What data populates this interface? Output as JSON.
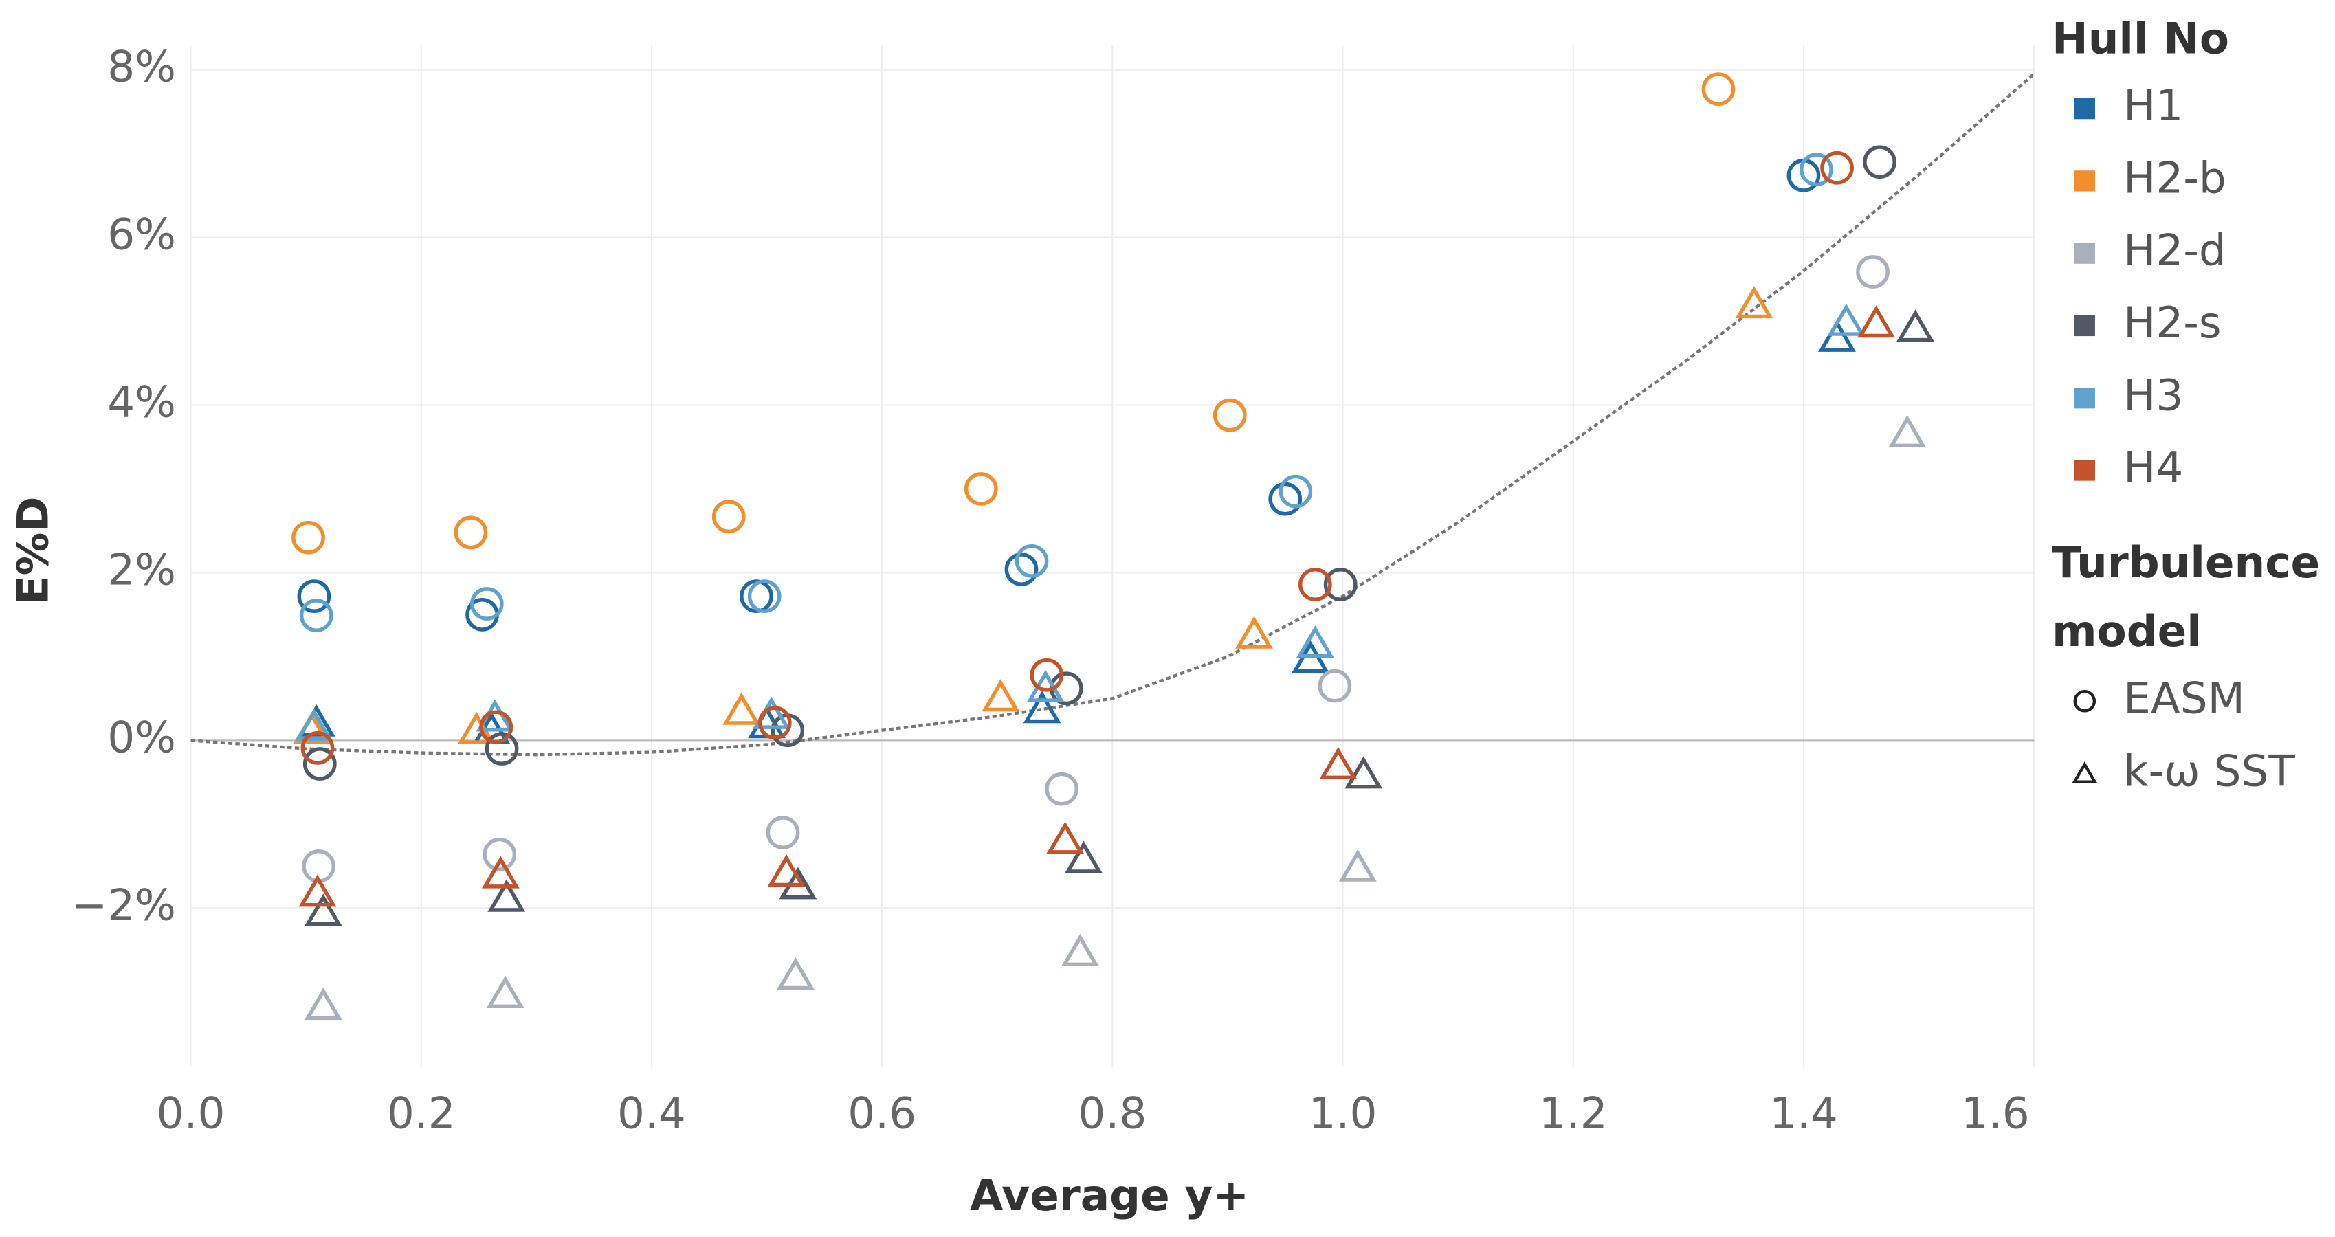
{
  "chart_data": {
    "type": "scatter",
    "x_label": "Average y+",
    "y_label": "E%D",
    "xlim": [
      0,
      1.6
    ],
    "ylim": [
      -3.9,
      8.3
    ],
    "xticks": [
      {
        "value": 0,
        "label": "0.0"
      },
      0.2,
      0.4,
      0.6,
      0.8,
      {
        "value": 1,
        "label": "1.0"
      },
      1.2,
      1.4,
      1.6
    ],
    "yticks": [
      {
        "value": -2,
        "label": "−2%"
      },
      {
        "value": 0,
        "label": "0%"
      },
      {
        "value": 2,
        "label": "2%"
      },
      {
        "value": 4,
        "label": "4%"
      },
      {
        "value": 6,
        "label": "6%"
      },
      {
        "value": 8,
        "label": "8%"
      }
    ],
    "grid": true,
    "legend_title": "Hull No",
    "shape_legend_title": [
      "Turbulence",
      "model"
    ],
    "shapes": [
      {
        "name": "EASM",
        "marker": "circle"
      },
      {
        "name": "k-ω SST",
        "marker": "triangle"
      }
    ],
    "series": [
      {
        "name": "H1",
        "color": "#1f6aa5",
        "by_shape": [
          {
            "x": [
              0.107,
              0.253,
              0.491,
              0.721,
              0.95,
              1.4
            ],
            "values": [
              1.72,
              1.5,
              1.72,
              2.04,
              2.88,
              6.74
            ]
          },
          {
            "x": [
              0.109,
              0.261,
              0.5,
              0.739,
              0.972,
              1.429
            ],
            "values": [
              0.21,
              0.12,
              0.19,
              0.37,
              0.97,
              4.8
            ]
          }
        ]
      },
      {
        "name": "H2-b",
        "color": "#f28e2b",
        "by_shape": [
          {
            "x": [
              0.102,
              0.243,
              0.467,
              0.686,
              0.902,
              1.326
            ],
            "values": [
              2.42,
              2.48,
              2.67,
              3.0,
              3.88,
              7.77
            ]
          },
          {
            "x": [
              0.105,
              0.248,
              0.478,
              0.703,
              0.923,
              1.357
            ],
            "values": [
              0.12,
              0.12,
              0.35,
              0.51,
              1.26,
              5.2
            ]
          }
        ]
      },
      {
        "name": "H2-d",
        "color": "#a9b0bb",
        "by_shape": [
          {
            "x": [
              0.111,
              0.268,
              0.514,
              0.756,
              0.993,
              1.46
            ],
            "values": [
              -1.5,
              -1.36,
              -1.1,
              -0.58,
              0.65,
              5.59
            ]
          },
          {
            "x": [
              0.115,
              0.273,
              0.525,
              0.772,
              1.013,
              1.49
            ],
            "values": [
              -3.17,
              -3.03,
              -2.81,
              -2.53,
              -1.52,
              3.66
            ]
          }
        ]
      },
      {
        "name": "H2-s",
        "color": "#4f5a66",
        "by_shape": [
          {
            "x": [
              0.112,
              0.27,
              0.518,
              0.76,
              0.998,
              1.466
            ],
            "values": [
              -0.28,
              -0.1,
              0.12,
              0.62,
              1.86,
              6.9
            ]
          },
          {
            "x": [
              0.115,
              0.274,
              0.527,
              0.775,
              1.018,
              1.497
            ],
            "values": [
              -2.05,
              -1.88,
              -1.73,
              -1.42,
              -0.41,
              4.92
            ]
          }
        ]
      },
      {
        "name": "H3",
        "color": "#5fa2d0",
        "by_shape": [
          {
            "x": [
              0.109,
              0.257,
              0.498,
              0.73,
              0.959,
              1.411
            ],
            "values": [
              1.49,
              1.63,
              1.72,
              2.14,
              2.97,
              6.81
            ]
          },
          {
            "x": [
              0.107,
              0.264,
              0.504,
              0.742,
              0.976,
              1.437
            ],
            "values": [
              0.16,
              0.27,
              0.3,
              0.62,
              1.15,
              4.99
            ]
          }
        ]
      },
      {
        "name": "H4",
        "color": "#c4532b",
        "by_shape": [
          {
            "x": [
              0.11,
              0.265,
              0.507,
              0.743,
              0.976,
              1.429
            ],
            "values": [
              -0.09,
              0.16,
              0.21,
              0.78,
              1.86,
              6.83
            ]
          },
          {
            "x": [
              0.11,
              0.269,
              0.517,
              0.759,
              0.996,
              1.463
            ],
            "values": [
              -1.82,
              -1.6,
              -1.58,
              -1.19,
              -0.3,
              4.97
            ]
          }
        ]
      }
    ],
    "trendline": {
      "color": "#777777",
      "x": [
        0,
        0.1,
        0.2,
        0.3,
        0.4,
        0.5,
        0.6,
        0.7,
        0.8,
        0.9,
        1.0,
        1.1,
        1.2,
        1.3,
        1.4,
        1.5,
        1.6
      ],
      "values": [
        0,
        -0.1,
        -0.15,
        -0.17,
        -0.14,
        -0.05,
        0.12,
        0.29,
        0.5,
        1.0,
        1.72,
        2.6,
        3.57,
        4.55,
        5.6,
        6.75,
        7.95
      ]
    }
  }
}
